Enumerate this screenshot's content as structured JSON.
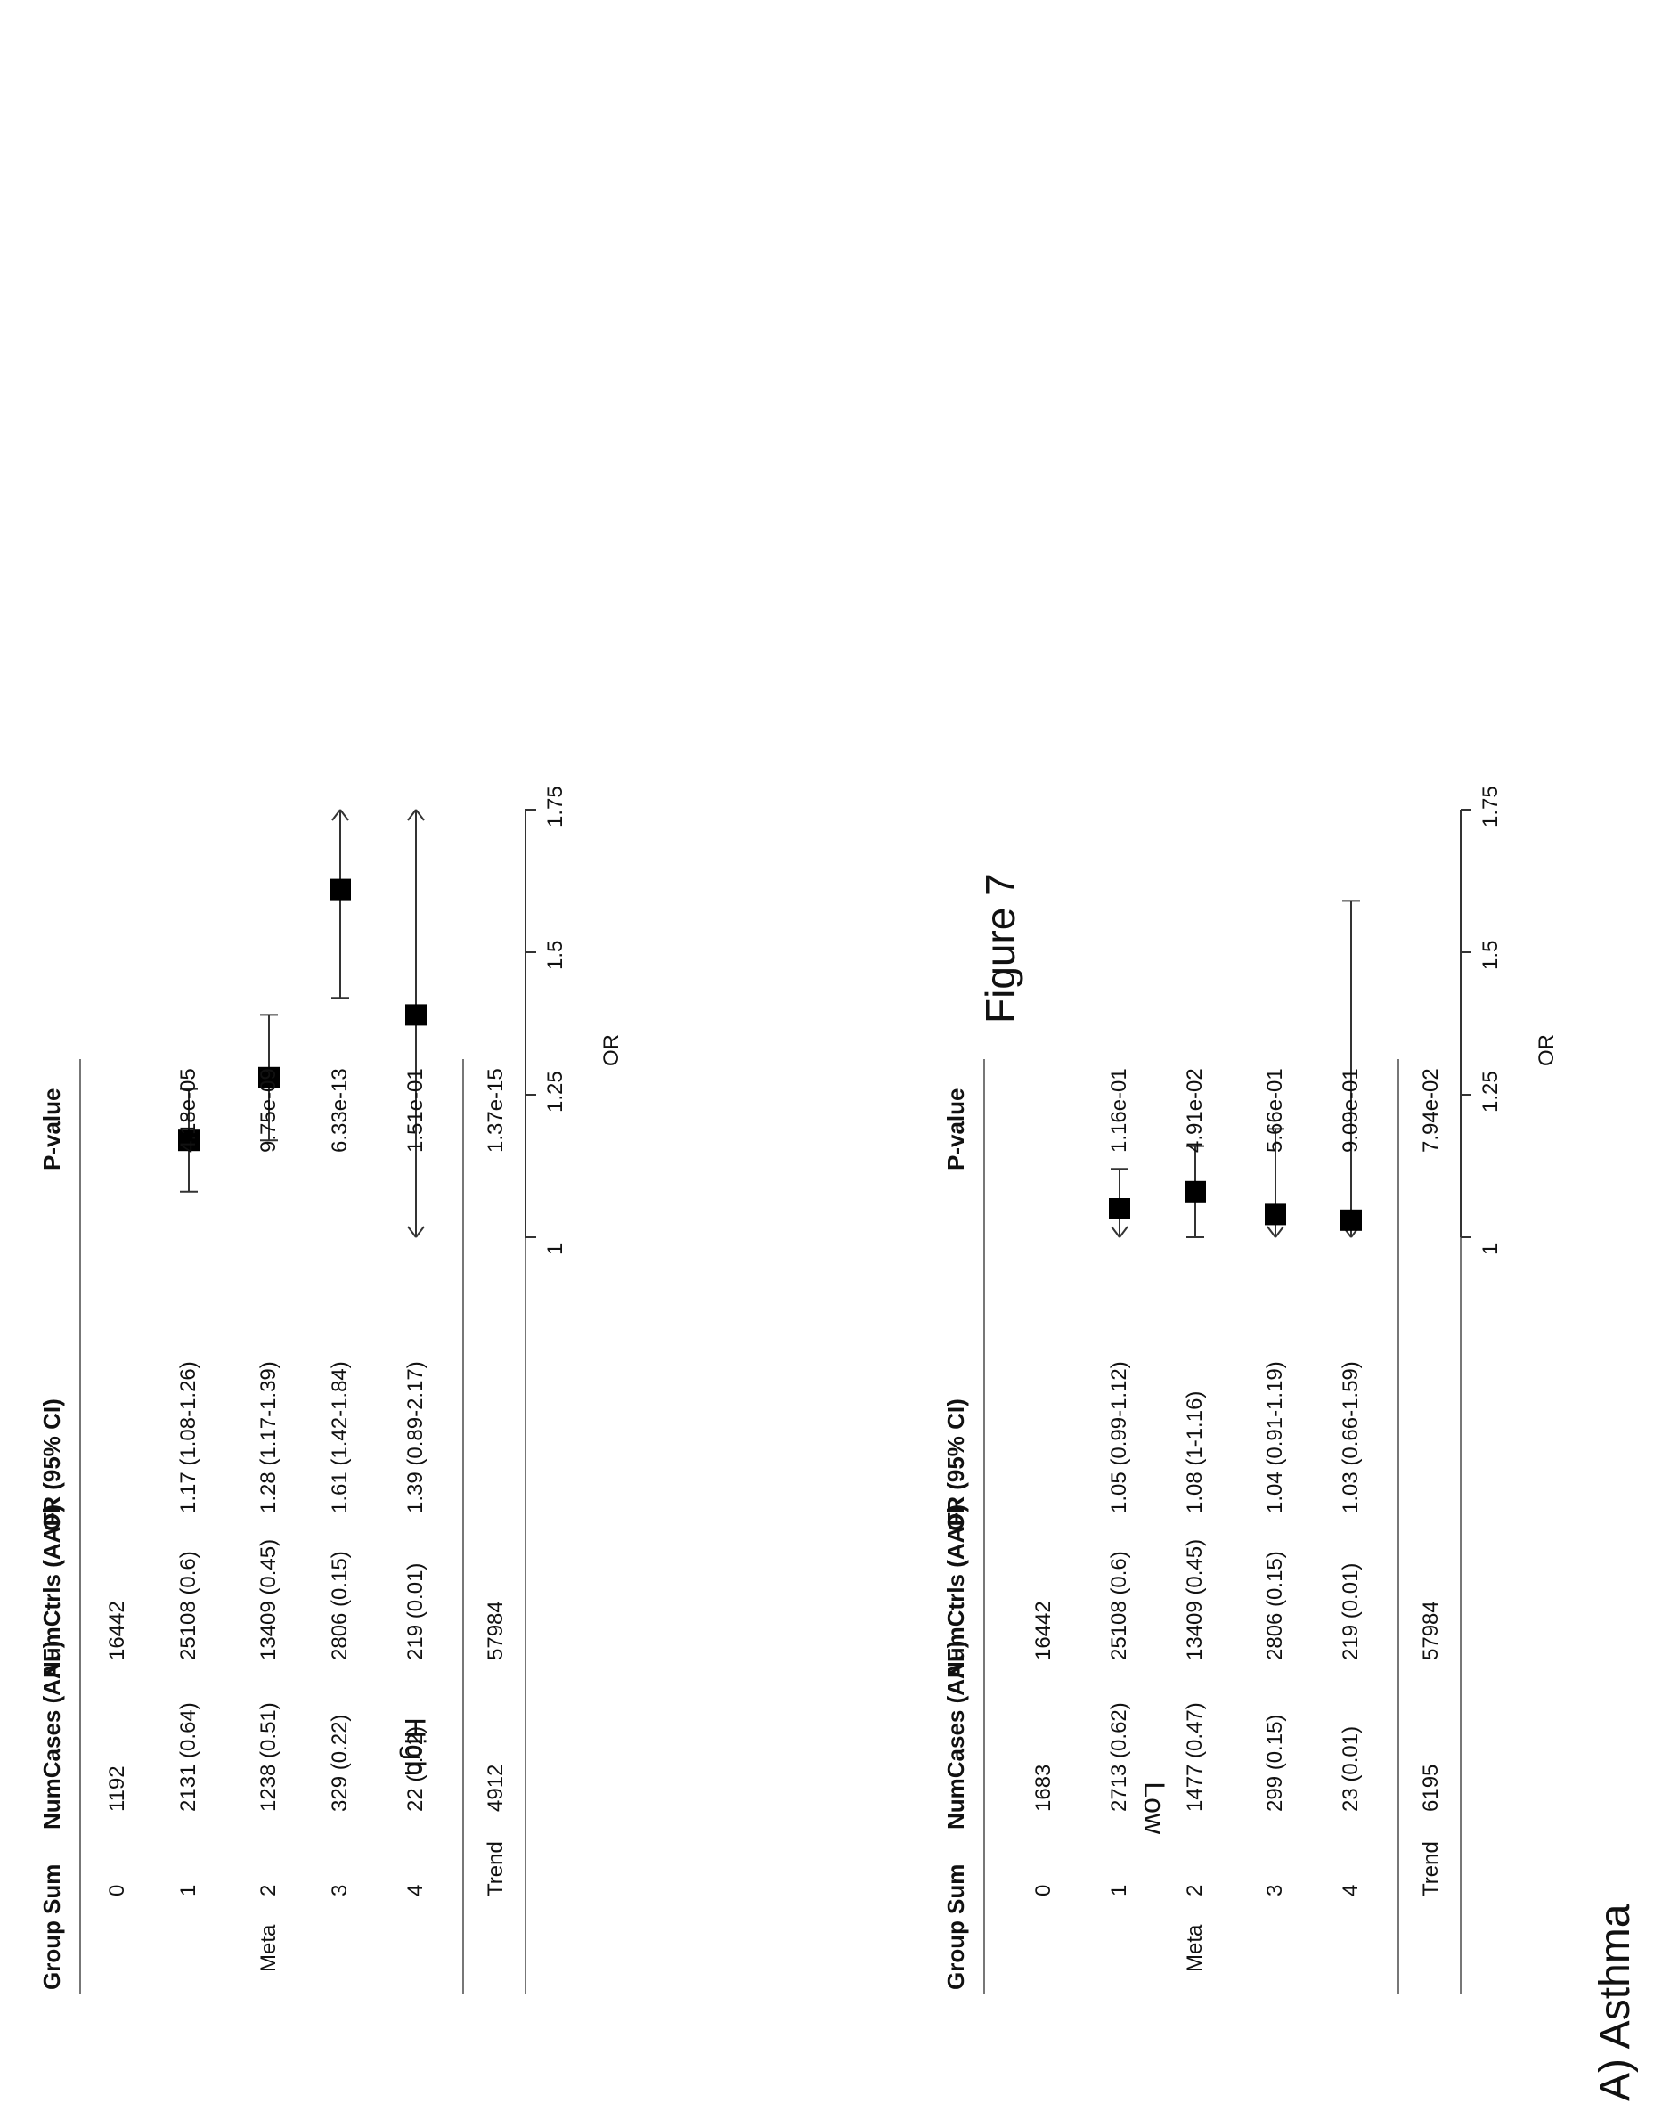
{
  "panel_title": "A) Asthma",
  "figure_caption": "Figure 7",
  "headers": [
    "Group",
    "Sum",
    "NumCases (AAF)",
    "NumCtrls (AAF)",
    "OR (95% CI)",
    "P-value"
  ],
  "axis": {
    "label": "OR",
    "ticks": [
      "1",
      "1.25",
      "1.5",
      "1.75"
    ],
    "tick_values": [
      1,
      1.25,
      1.5,
      1.75
    ],
    "min": 1,
    "max": 1.75
  },
  "colors": {
    "marker": "#000000",
    "line": "#333333",
    "rule": "#777777"
  },
  "panels": [
    {
      "side_label": "High",
      "group_label": "Meta",
      "rows": [
        {
          "sum": "0",
          "cases": "1192",
          "ctrls": "16442",
          "or_text": "",
          "p": ""
        },
        {
          "sum": "1",
          "cases": "2131 (0.64)",
          "ctrls": "25108 (0.6)",
          "or_text": "1.17 (1.08-1.26)",
          "p": "4.18e-05"
        },
        {
          "sum": "2",
          "cases": "1238 (0.51)",
          "ctrls": "13409 (0.45)",
          "or_text": "1.28 (1.17-1.39)",
          "p": "9.75e-09"
        },
        {
          "sum": "3",
          "cases": "329 (0.22)",
          "ctrls": "2806 (0.15)",
          "or_text": "1.61 (1.42-1.84)",
          "p": "6.33e-13"
        },
        {
          "sum": "4",
          "cases": "22 (0.02)",
          "ctrls": "219 (0.01)",
          "or_text": "1.39 (0.89-2.17)",
          "p": "1.51e-01"
        }
      ],
      "trend": {
        "label": "Trend",
        "cases": "4912",
        "ctrls": "57984",
        "p": "1.37e-15"
      }
    },
    {
      "side_label": "Low",
      "group_label": "Meta",
      "rows": [
        {
          "sum": "0",
          "cases": "1683",
          "ctrls": "16442",
          "or_text": "",
          "p": ""
        },
        {
          "sum": "1",
          "cases": "2713 (0.62)",
          "ctrls": "25108 (0.6)",
          "or_text": "1.05 (0.99-1.12)",
          "p": "1.16e-01"
        },
        {
          "sum": "2",
          "cases": "1477 (0.47)",
          "ctrls": "13409 (0.45)",
          "or_text": "1.08 (1-1.16)",
          "p": "4.91e-02"
        },
        {
          "sum": "3",
          "cases": "299 (0.15)",
          "ctrls": "2806 (0.15)",
          "or_text": "1.04 (0.91-1.19)",
          "p": "5.66e-01"
        },
        {
          "sum": "4",
          "cases": "23 (0.01)",
          "ctrls": "219 (0.01)",
          "or_text": "1.03 (0.66-1.59)",
          "p": "9.09e-01"
        }
      ],
      "trend": {
        "label": "Trend",
        "cases": "6195",
        "ctrls": "57984",
        "p": "7.94e-02"
      }
    }
  ],
  "chart_data": [
    {
      "type": "forest",
      "xlabel": "OR",
      "xlim": [
        1,
        1.75
      ],
      "xticks": [
        1,
        1.25,
        1.5,
        1.75
      ],
      "categories": [
        "1",
        "2",
        "3",
        "4"
      ],
      "estimates": [
        1.17,
        1.28,
        1.61,
        1.39
      ],
      "ci_lower": [
        1.08,
        1.17,
        1.42,
        0.89
      ],
      "ci_upper": [
        1.26,
        1.39,
        1.84,
        2.17
      ],
      "p_values": [
        "4.18e-05",
        "9.75e-09",
        "6.33e-13",
        "1.51e-01"
      ],
      "trend_p": "1.37e-15"
    },
    {
      "type": "forest",
      "xlabel": "OR",
      "xlim": [
        1,
        1.75
      ],
      "xticks": [
        1,
        1.25,
        1.5,
        1.75
      ],
      "categories": [
        "1",
        "2",
        "3",
        "4"
      ],
      "estimates": [
        1.05,
        1.08,
        1.04,
        1.03
      ],
      "ci_lower": [
        0.99,
        1,
        0.91,
        0.66
      ],
      "ci_upper": [
        1.12,
        1.16,
        1.19,
        1.59
      ],
      "p_values": [
        "1.16e-01",
        "4.91e-02",
        "5.66e-01",
        "9.09e-01"
      ],
      "trend_p": "7.94e-02"
    }
  ]
}
